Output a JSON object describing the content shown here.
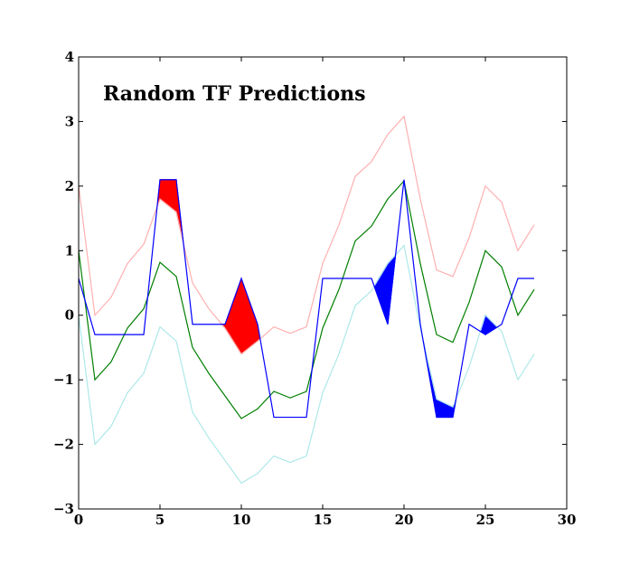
{
  "chart_data": {
    "type": "line",
    "title": "Random TF Predictions",
    "xlabel": "",
    "ylabel": "",
    "xlim": [
      0,
      30
    ],
    "ylim": [
      -3,
      4
    ],
    "x_ticks": [
      0,
      5,
      10,
      15,
      20,
      25,
      30
    ],
    "y_ticks": [
      -3,
      -2,
      -1,
      0,
      1,
      2,
      3,
      4
    ],
    "x_tick_labels": [
      "0",
      "5",
      "10",
      "15",
      "20",
      "25",
      "30"
    ],
    "y_tick_labels": [
      "−3",
      "−2",
      "−1",
      "0",
      "1",
      "2",
      "3",
      "4"
    ],
    "grid": false,
    "legend": "none",
    "x": [
      0,
      1,
      2,
      3,
      4,
      5,
      6,
      7,
      8,
      9,
      10,
      11,
      12,
      13,
      14,
      15,
      16,
      17,
      18,
      19,
      20,
      21,
      22,
      23,
      24,
      25,
      26,
      27,
      28
    ],
    "series": [
      {
        "role": "upper band",
        "color": "#ffb0b0",
        "values": [
          2.0,
          0.0,
          0.28,
          0.8,
          1.1,
          1.8,
          1.6,
          0.5,
          0.1,
          -0.2,
          -0.6,
          -0.4,
          -0.18,
          -0.28,
          -0.18,
          0.8,
          1.4,
          2.15,
          2.38,
          2.8,
          3.08,
          1.8,
          0.7,
          0.6,
          1.2,
          2.0,
          1.75,
          1.0,
          1.4
        ]
      },
      {
        "role": "mean prediction",
        "color": "#007f00",
        "values": [
          1.0,
          -1.0,
          -0.72,
          -0.2,
          0.1,
          0.82,
          0.6,
          -0.5,
          -0.9,
          -1.25,
          -1.6,
          -1.45,
          -1.18,
          -1.28,
          -1.18,
          -0.2,
          0.4,
          1.15,
          1.38,
          1.8,
          2.08,
          0.8,
          -0.3,
          -0.42,
          0.2,
          1.0,
          0.75,
          0.0,
          0.4
        ]
      },
      {
        "role": "lower band",
        "color": "#aee8e8",
        "values": [
          0.0,
          -2.0,
          -1.72,
          -1.2,
          -0.9,
          -0.18,
          -0.4,
          -1.5,
          -1.9,
          -2.25,
          -2.6,
          -2.45,
          -2.18,
          -2.28,
          -2.18,
          -1.2,
          -0.6,
          0.15,
          0.38,
          0.8,
          1.08,
          -0.2,
          -1.3,
          -1.42,
          -0.8,
          0.0,
          -0.25,
          -1.0,
          -0.6
        ]
      },
      {
        "role": "actual",
        "color": "#0000ff",
        "values": [
          0.57,
          -0.3,
          -0.3,
          -0.3,
          -0.3,
          2.1,
          2.1,
          -0.14,
          -0.14,
          -0.14,
          0.57,
          -0.14,
          -1.58,
          -1.58,
          -1.58,
          0.57,
          0.57,
          0.57,
          0.57,
          -0.14,
          2.1,
          -0.14,
          -1.58,
          -1.58,
          -0.14,
          -0.3,
          -0.14,
          0.57,
          0.57
        ]
      }
    ],
    "fill_above_color": "#ff0000",
    "fill_below_color": "#0000ff"
  }
}
